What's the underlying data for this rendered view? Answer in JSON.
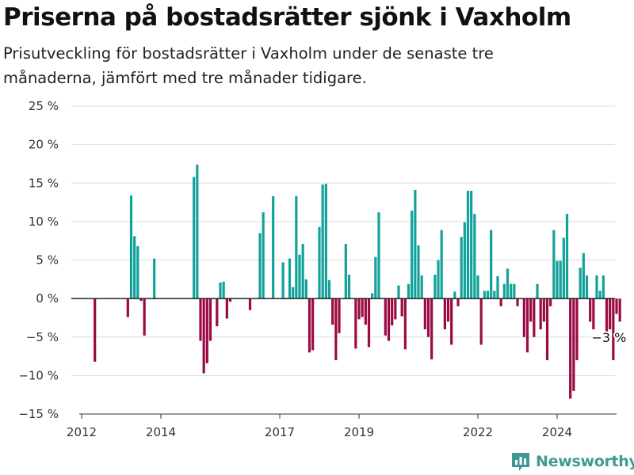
{
  "header": {
    "title": "Priserna på bostadsrätter sjönk i Vaxholm",
    "subtitle": "Prisutveckling för bostadsrätter i Vaxholm under de senaste tre månaderna, jämfört med tre månader tidigare."
  },
  "logo": {
    "text": "Newsworthy",
    "icon": "bar-chart-icon",
    "color": "#3f9a97"
  },
  "colors": {
    "positive": "#12a29a",
    "negative": "#9b0b43",
    "grid": "#dddddd",
    "axis": "#333333"
  },
  "chart_data": {
    "type": "bar",
    "title": "Priserna på bostadsrätter sjönk i Vaxholm",
    "subtitle": "Prisutveckling för bostadsrätter i Vaxholm under de senaste tre månaderna, jämfört med tre månader tidigare.",
    "xlabel": "",
    "ylabel": "",
    "unit": "%",
    "ylim": [
      -15,
      25
    ],
    "yticks": [
      -15,
      -10,
      -5,
      0,
      5,
      10,
      15,
      20,
      25
    ],
    "ytick_labels": [
      "−15 %",
      "−10 %",
      "−5 %",
      "0 %",
      "5 %",
      "10 %",
      "15 %",
      "20 %",
      "25 %"
    ],
    "xlim": [
      "2012-01",
      "2025-07"
    ],
    "xticks": [
      {
        "date": "2012-01",
        "label": "2012"
      },
      {
        "date": "2014-01",
        "label": "2014"
      },
      {
        "date": "2017-01",
        "label": "2017"
      },
      {
        "date": "2019-01",
        "label": "2019"
      },
      {
        "date": "2022-01",
        "label": "2022"
      },
      {
        "date": "2024-01",
        "label": "2024"
      }
    ],
    "grid": true,
    "annotation": {
      "date": "2024-10",
      "label": "−3 %"
    },
    "series": [
      {
        "data": [
          [
            "2012-05",
            -8.2
          ],
          [
            "2013-03",
            -2.4
          ],
          [
            "2013-04",
            13.4
          ],
          [
            "2013-05",
            8.1
          ],
          [
            "2013-06",
            6.8
          ],
          [
            "2013-07",
            -0.3
          ],
          [
            "2013-08",
            -4.8
          ],
          [
            "2013-11",
            5.2
          ],
          [
            "2014-11",
            15.8
          ],
          [
            "2014-12",
            17.4
          ],
          [
            "2015-01",
            -5.5
          ],
          [
            "2015-02",
            -9.7
          ],
          [
            "2015-03",
            -8.4
          ],
          [
            "2015-04",
            -5.5
          ],
          [
            "2015-06",
            -3.6
          ],
          [
            "2015-07",
            2.1
          ],
          [
            "2015-08",
            2.2
          ],
          [
            "2015-09",
            -2.6
          ],
          [
            "2015-10",
            -0.4
          ],
          [
            "2016-04",
            -1.5
          ],
          [
            "2016-07",
            8.5
          ],
          [
            "2016-08",
            11.2
          ],
          [
            "2016-11",
            13.3
          ],
          [
            "2017-02",
            4.7
          ],
          [
            "2017-03",
            0.1
          ],
          [
            "2017-04",
            5.2
          ],
          [
            "2017-05",
            1.5
          ],
          [
            "2017-06",
            13.3
          ],
          [
            "2017-07",
            5.7
          ],
          [
            "2017-08",
            7.1
          ],
          [
            "2017-09",
            2.5
          ],
          [
            "2017-10",
            -7.0
          ],
          [
            "2017-11",
            -6.7
          ],
          [
            "2018-01",
            9.3
          ],
          [
            "2018-02",
            14.8
          ],
          [
            "2018-03",
            14.9
          ],
          [
            "2018-04",
            2.4
          ],
          [
            "2018-05",
            -3.4
          ],
          [
            "2018-06",
            -8.0
          ],
          [
            "2018-07",
            -4.5
          ],
          [
            "2018-09",
            7.1
          ],
          [
            "2018-10",
            3.1
          ],
          [
            "2018-12",
            -6.5
          ],
          [
            "2019-01",
            -2.7
          ],
          [
            "2019-02",
            -2.4
          ],
          [
            "2019-03",
            -3.4
          ],
          [
            "2019-04",
            -6.3
          ],
          [
            "2019-05",
            0.7
          ],
          [
            "2019-06",
            5.4
          ],
          [
            "2019-07",
            11.2
          ],
          [
            "2019-09",
            -4.8
          ],
          [
            "2019-10",
            -5.5
          ],
          [
            "2019-11",
            -3.5
          ],
          [
            "2019-12",
            -2.7
          ],
          [
            "2020-01",
            1.7
          ],
          [
            "2020-02",
            -2.3
          ],
          [
            "2020-03",
            -6.6
          ],
          [
            "2020-04",
            1.9
          ],
          [
            "2020-05",
            11.4
          ],
          [
            "2020-06",
            14.1
          ],
          [
            "2020-07",
            6.9
          ],
          [
            "2020-08",
            3.0
          ],
          [
            "2020-09",
            -4.0
          ],
          [
            "2020-10",
            -5.0
          ],
          [
            "2020-11",
            -7.9
          ],
          [
            "2020-12",
            3.1
          ],
          [
            "2021-01",
            5.0
          ],
          [
            "2021-02",
            8.9
          ],
          [
            "2021-03",
            -4.0
          ],
          [
            "2021-04",
            -3.0
          ],
          [
            "2021-05",
            -6.0
          ],
          [
            "2021-06",
            0.9
          ],
          [
            "2021-07",
            -1.0
          ],
          [
            "2021-08",
            8.0
          ],
          [
            "2021-09",
            9.9
          ],
          [
            "2021-10",
            14.0
          ],
          [
            "2021-11",
            14.0
          ],
          [
            "2021-12",
            11.0
          ],
          [
            "2022-01",
            3.0
          ],
          [
            "2022-02",
            -6.0
          ],
          [
            "2022-03",
            1.0
          ],
          [
            "2022-04",
            1.0
          ],
          [
            "2022-05",
            8.9
          ],
          [
            "2022-06",
            1.0
          ],
          [
            "2022-07",
            2.9
          ],
          [
            "2022-08",
            -1.0
          ],
          [
            "2022-09",
            1.9
          ],
          [
            "2022-10",
            3.9
          ],
          [
            "2022-11",
            1.9
          ],
          [
            "2022-12",
            1.9
          ],
          [
            "2023-01",
            -1.0
          ],
          [
            "2023-02",
            0.0
          ],
          [
            "2023-03",
            -5.0
          ],
          [
            "2023-04",
            -7.0
          ],
          [
            "2023-05",
            -3.0
          ],
          [
            "2023-06",
            -5.0
          ],
          [
            "2023-07",
            1.9
          ],
          [
            "2023-08",
            -4.0
          ],
          [
            "2023-09",
            -3.0
          ],
          [
            "2023-10",
            -8.0
          ],
          [
            "2023-11",
            -1.0
          ],
          [
            "2023-12",
            8.9
          ],
          [
            "2024-01",
            4.9
          ],
          [
            "2024-02",
            4.9
          ],
          [
            "2024-03",
            7.9
          ],
          [
            "2024-04",
            11.0
          ],
          [
            "2024-05",
            -13.0
          ],
          [
            "2024-06",
            -12.0
          ],
          [
            "2024-07",
            -8.0
          ],
          [
            "2024-08",
            4.0
          ],
          [
            "2024-09",
            5.9
          ],
          [
            "2024-10",
            3.0
          ],
          [
            "2024-11",
            -3.0
          ],
          [
            "2024-12",
            -4.0
          ],
          [
            "2025-01",
            3.0
          ],
          [
            "2025-02",
            1.0
          ],
          [
            "2025-03",
            3.0
          ],
          [
            "2025-04",
            -4.8
          ],
          [
            "2025-05",
            -4.0
          ],
          [
            "2025-06",
            -8.0
          ],
          [
            "2025-07",
            -2.0
          ],
          [
            "2025-08",
            -3.0
          ]
        ]
      }
    ]
  }
}
